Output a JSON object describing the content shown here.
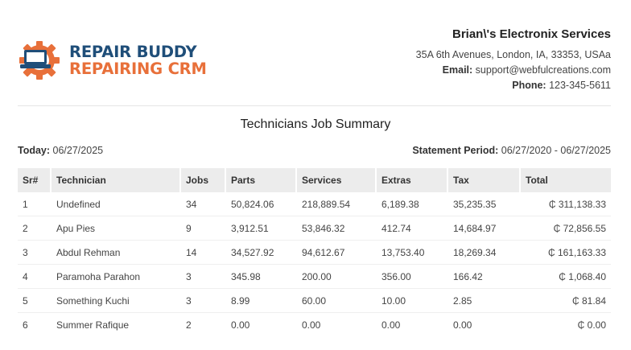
{
  "brand": {
    "line1": "REPAIR BUDDY",
    "line2": "REPAIRING CRM",
    "colors": {
      "blue": "#1f4e79",
      "orange": "#e8703a"
    },
    "icon": "gear-laptop-logo-icon"
  },
  "company": {
    "name": "Brian\\'s Electronix Services",
    "address": "35A 6th Avenues, London, IA, 33353, USAa",
    "email_label": "Email:",
    "email": "support@webfulcreations.com",
    "phone_label": "Phone:",
    "phone": "123-345-5611"
  },
  "report": {
    "title": "Technicians Job Summary",
    "today_label": "Today:",
    "today": "06/27/2025",
    "period_label": "Statement Period:",
    "period": "06/27/2020 - 06/27/2025"
  },
  "table": {
    "headers": [
      "Sr#",
      "Technician",
      "Jobs",
      "Parts",
      "Services",
      "Extras",
      "Tax",
      "Total"
    ],
    "rows": [
      [
        "1",
        "Undefined",
        "34",
        "50,824.06",
        "218,889.54",
        "6,189.38",
        "35,235.35",
        "₵ 311,138.33"
      ],
      [
        "2",
        "Apu Pies",
        "9",
        "3,912.51",
        "53,846.32",
        "412.74",
        "14,684.97",
        "₵ 72,856.55"
      ],
      [
        "3",
        "Abdul Rehman",
        "14",
        "34,527.92",
        "94,612.67",
        "13,753.40",
        "18,269.34",
        "₵ 161,163.33"
      ],
      [
        "4",
        "Paramoha Parahon",
        "3",
        "345.98",
        "200.00",
        "356.00",
        "166.42",
        "₵ 1,068.40"
      ],
      [
        "5",
        "Something Kuchi",
        "3",
        "8.99",
        "60.00",
        "10.00",
        "2.85",
        "₵ 81.84"
      ],
      [
        "6",
        "Summer Rafique",
        "2",
        "0.00",
        "0.00",
        "0.00",
        "0.00",
        "₵ 0.00"
      ]
    ]
  }
}
